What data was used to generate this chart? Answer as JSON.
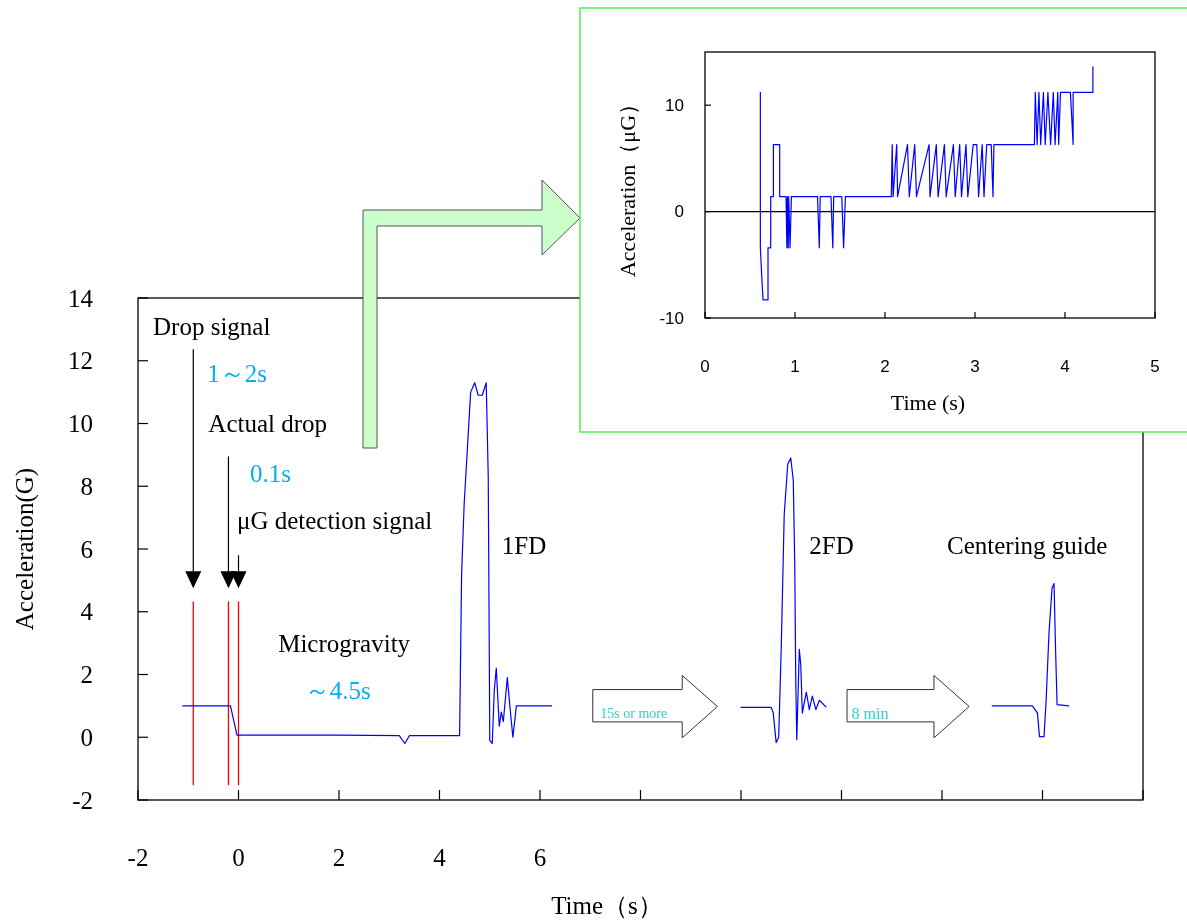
{
  "chart_data": [
    {
      "type": "line",
      "xlabel": "Time（s）",
      "ylabel": "Acceleration(G)",
      "xlim": [
        -2,
        18
      ],
      "ylim": [
        -2,
        14
      ],
      "xticks": [
        -2,
        0,
        2,
        4,
        6,
        {
          "value": 8,
          "label": null
        },
        {
          "value": 10,
          "label": null
        },
        {
          "value": 12,
          "label": null
        },
        {
          "value": 14,
          "label": null
        },
        {
          "value": 16,
          "label": null
        },
        {
          "value": 18,
          "label": null
        }
      ],
      "yticks": [
        -2,
        0,
        2,
        4,
        6,
        8,
        10,
        12,
        14
      ],
      "series": [
        {
          "color": "#0000ff",
          "x": [
            -1.11,
            -0.6,
            -0.16,
            -0.03,
            1.0,
            2.0,
            3.2,
            3.31,
            3.4,
            4.4,
            4.44,
            4.49,
            4.62,
            4.7,
            4.77,
            4.85,
            4.93,
            4.97,
            4.99,
            5.0,
            5.05,
            5.09,
            5.13,
            5.19,
            5.23,
            5.27,
            5.35,
            5.4,
            5.46,
            5.53,
            5.7,
            6.23
          ],
          "values": [
            1.0,
            1.0,
            1.0,
            0.07,
            0.07,
            0.07,
            0.05,
            -0.2,
            0.05,
            0.05,
            5.2,
            7.4,
            11.0,
            11.3,
            10.9,
            10.9,
            11.3,
            8.3,
            2.9,
            -0.1,
            -0.2,
            1.5,
            2.2,
            0.35,
            0.8,
            0.5,
            1.9,
            1.0,
            0.0,
            1.0,
            1.0,
            1.0
          ]
        },
        {
          "color": "#0000ff",
          "x": [
            10.0,
            10.6,
            10.64,
            10.7,
            10.75,
            10.8,
            10.86,
            10.93,
            10.99,
            11.04,
            11.07,
            11.09,
            11.11,
            11.16,
            11.19,
            11.22,
            11.3,
            11.36,
            11.42,
            11.49,
            11.56,
            11.69
          ],
          "values": [
            0.95,
            0.95,
            0.8,
            -0.17,
            0.0,
            2.8,
            7.1,
            8.7,
            8.9,
            8.2,
            5.5,
            1.75,
            -0.08,
            2.8,
            2.3,
            0.77,
            1.44,
            0.88,
            1.31,
            0.88,
            1.18,
            0.97
          ]
        },
        {
          "color": "#0000ff",
          "x": [
            15.0,
            15.8,
            15.9,
            15.94,
            16.03,
            16.07,
            16.13,
            16.19,
            16.23,
            16.26,
            16.29,
            16.52
          ],
          "values": [
            1.0,
            1.0,
            0.77,
            0.02,
            0.02,
            1.1,
            3.35,
            4.75,
            4.9,
            2.8,
            1.04,
            1.0
          ]
        }
      ],
      "ref_lines": [
        {
          "axis": "x",
          "value": -0.9,
          "color": "#ff0000"
        },
        {
          "axis": "x",
          "value": -0.2,
          "color": "#ff0000"
        },
        {
          "axis": "x",
          "value": 0,
          "color": "#ff0000"
        }
      ],
      "annotations": [
        "Drop signal",
        "1～2s",
        "Actual drop",
        "0.1s",
        "μG detection signal",
        "Microgravity",
        "～4.5s",
        "1FD",
        "2FD",
        "Centering guide",
        "15s or more",
        "8 min"
      ]
    },
    {
      "type": "line",
      "xlabel": "Time (s)",
      "ylabel": "Acceleration（μG）",
      "xlim": [
        0,
        5
      ],
      "ylim": [
        -10,
        15
      ],
      "xticks": [
        0,
        1,
        2,
        3,
        4,
        5
      ],
      "yticks": [
        -10,
        0,
        10
      ],
      "series": [
        {
          "color": "#0000ff",
          "x": [
            0.615,
            0.615,
            0.63,
            0.645,
            0.7,
            0.7,
            0.73,
            0.73,
            0.76,
            0.76,
            0.83,
            0.83,
            0.9,
            0.91,
            0.915,
            0.925,
            0.93,
            0.945,
            0.96,
            1.25,
            1.27,
            1.28,
            1.4,
            1.41,
            1.42,
            1.43,
            1.52,
            1.53,
            1.54,
            1.56,
            2.07,
            2.08,
            2.09,
            2.13,
            2.14,
            2.25,
            2.27,
            2.33,
            2.35,
            2.49,
            2.5,
            2.57,
            2.59,
            2.66,
            2.68,
            2.76,
            2.78,
            2.83,
            2.85,
            2.9,
            2.92,
            2.98,
            3.02,
            3.04,
            3.08,
            3.1,
            3.13,
            3.18,
            3.2,
            3.21,
            3.66,
            3.67,
            3.69,
            3.71,
            3.73,
            3.76,
            3.78,
            3.81,
            3.84,
            3.87,
            3.89,
            3.92,
            3.93,
            3.95,
            4.06,
            4.08,
            4.09,
            4.09,
            4.31,
            4.31
          ],
          "values": [
            11.2,
            -3.4,
            -6,
            -8.3,
            -8.3,
            -3.4,
            -3.4,
            1.4,
            1.4,
            6.3,
            6.3,
            1.4,
            1.4,
            -3.4,
            1.4,
            -3.4,
            1.4,
            -3.4,
            1.4,
            1.4,
            -3.4,
            1.4,
            1.4,
            -1,
            -3.4,
            1.4,
            1.4,
            -1,
            -3.4,
            1.4,
            1.4,
            6.3,
            1.4,
            6.3,
            1.4,
            6.3,
            1.4,
            6.3,
            1.4,
            6.3,
            1.4,
            6.3,
            1.4,
            6.3,
            1.4,
            6.3,
            1.4,
            6.3,
            1.4,
            6.3,
            1.4,
            6.3,
            6.3,
            1.4,
            6.3,
            1.4,
            6.3,
            6.3,
            1.4,
            6.3,
            6.3,
            11.2,
            6.3,
            11.2,
            6.3,
            11.2,
            6.3,
            11.2,
            6.3,
            11.2,
            6.3,
            11.2,
            6.3,
            11.2,
            11.2,
            8,
            6.3,
            11.2,
            11.2,
            13.6
          ]
        }
      ],
      "ref_lines": [
        {
          "axis": "y",
          "value": 0,
          "color": "#000000"
        }
      ]
    }
  ]
}
